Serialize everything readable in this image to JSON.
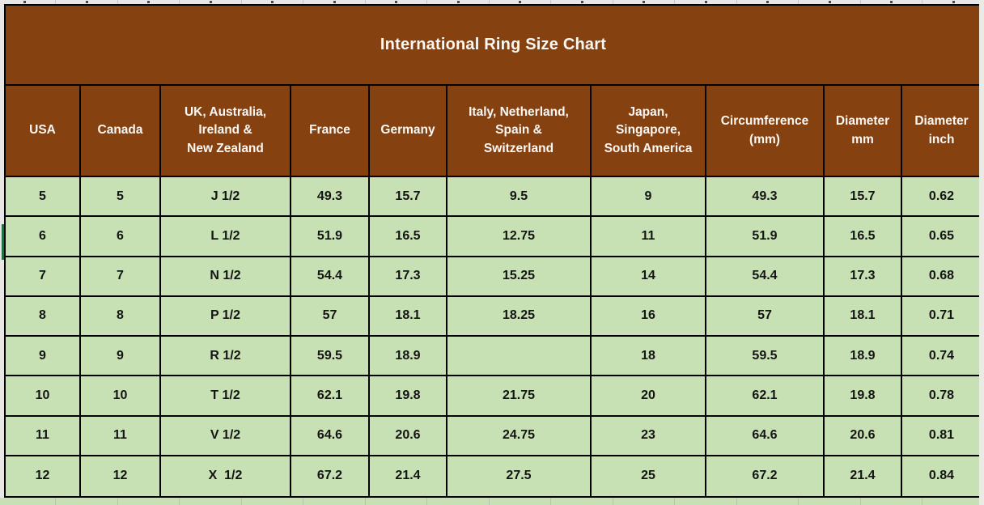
{
  "sheet": {
    "title": "International Ring Size Chart",
    "columns": [
      {
        "key": "usa",
        "label": "USA"
      },
      {
        "key": "canada",
        "label": "Canada"
      },
      {
        "key": "uk-australia-ireland-nz",
        "label": "UK, Australia,\nIreland &\nNew Zealand"
      },
      {
        "key": "france",
        "label": "France"
      },
      {
        "key": "germany",
        "label": "Germany"
      },
      {
        "key": "italy-netherland-spain-switzerland",
        "label": "Italy, Netherland,\nSpain &\nSwitzerland"
      },
      {
        "key": "japan-singapore-south-america",
        "label": "Japan,\nSingapore,\nSouth America"
      },
      {
        "key": "circumference-mm",
        "label": "Circumference\n(mm)"
      },
      {
        "key": "diameter-mm",
        "label": "Diameter\nmm"
      },
      {
        "key": "diameter-inch",
        "label": "Diameter\ninch"
      }
    ],
    "rows": [
      [
        "5",
        "5",
        "J 1/2",
        "49.3",
        "15.7",
        "9.5",
        "9",
        "49.3",
        "15.7",
        "0.62"
      ],
      [
        "6",
        "6",
        "L 1/2",
        "51.9",
        "16.5",
        "12.75",
        "11",
        "51.9",
        "16.5",
        "0.65"
      ],
      [
        "7",
        "7",
        "N 1/2",
        "54.4",
        "17.3",
        "15.25",
        "14",
        "54.4",
        "17.3",
        "0.68"
      ],
      [
        "8",
        "8",
        "P 1/2",
        "57",
        "18.1",
        "18.25",
        "16",
        "57",
        "18.1",
        "0.71"
      ],
      [
        "9",
        "9",
        "R 1/2",
        "59.5",
        "18.9",
        "",
        "18",
        "59.5",
        "18.9",
        "0.74"
      ],
      [
        "10",
        "10",
        "T 1/2",
        "62.1",
        "19.8",
        "21.75",
        "20",
        "62.1",
        "19.8",
        "0.78"
      ],
      [
        "11",
        "11",
        "V 1/2",
        "64.6",
        "20.6",
        "24.75",
        "23",
        "64.6",
        "20.6",
        "0.81"
      ],
      [
        "12",
        "12",
        "X  1/2",
        "67.2",
        "21.4",
        "27.5",
        "25",
        "67.2",
        "21.4",
        "0.84"
      ]
    ],
    "colors": {
      "header_brown": "#864110",
      "cell_green": "#C8E1B4",
      "border_black": "#000000",
      "selection_green": "#1E7145"
    }
  }
}
